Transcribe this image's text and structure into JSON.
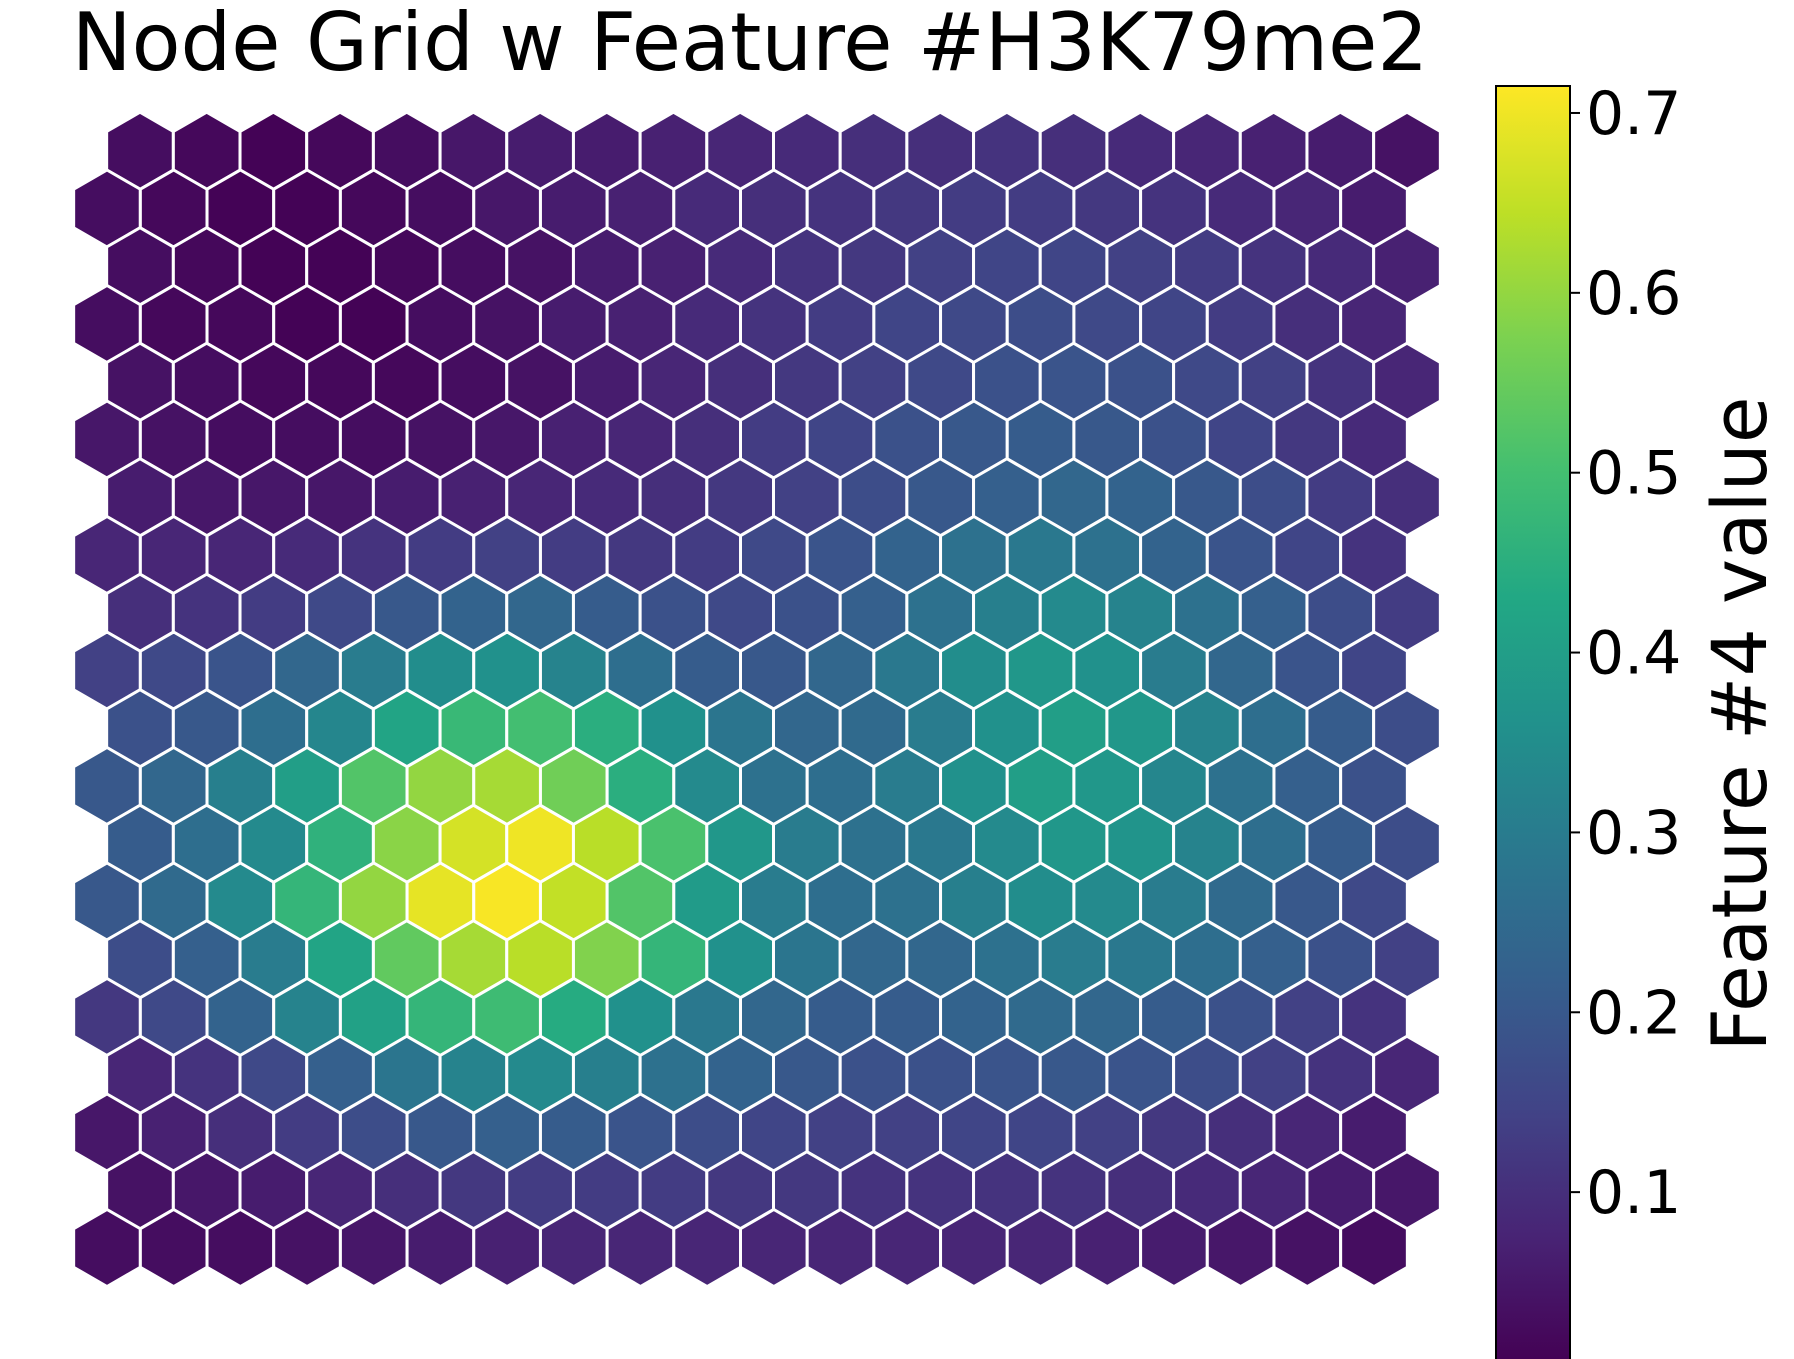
{
  "chart_data": {
    "type": "heatmap",
    "grid": "hexagonal",
    "title": "Node Grid w Feature #H3K79me2",
    "colorbar": {
      "label": "Feature #4 value",
      "colormap": "viridis",
      "vmin": 0.005,
      "vmax": 0.715,
      "ticks": [
        0.1,
        0.2,
        0.3,
        0.4,
        0.5,
        0.6,
        0.7
      ],
      "tick_labels": [
        "0.1",
        "0.2",
        "0.3",
        "0.4",
        "0.5",
        "0.6",
        "0.7"
      ]
    },
    "rows": 20,
    "cols": 20,
    "rows_top_to_bottom": [
      [
        0.03,
        0.02,
        0.01,
        0.02,
        0.03,
        0.05,
        0.06,
        0.06,
        0.07,
        0.08,
        0.09,
        0.1,
        0.1,
        0.11,
        0.1,
        0.09,
        0.08,
        0.07,
        0.06,
        0.04
      ],
      [
        0.03,
        0.02,
        0.01,
        0.01,
        0.02,
        0.03,
        0.05,
        0.06,
        0.07,
        0.09,
        0.1,
        0.11,
        0.12,
        0.13,
        0.13,
        0.12,
        0.11,
        0.09,
        0.08,
        0.06
      ],
      [
        0.03,
        0.02,
        0.01,
        0.01,
        0.02,
        0.03,
        0.04,
        0.06,
        0.07,
        0.09,
        0.11,
        0.12,
        0.14,
        0.15,
        0.15,
        0.14,
        0.13,
        0.11,
        0.09,
        0.07
      ],
      [
        0.03,
        0.02,
        0.02,
        0.01,
        0.01,
        0.03,
        0.04,
        0.06,
        0.07,
        0.09,
        0.11,
        0.13,
        0.15,
        0.16,
        0.17,
        0.16,
        0.15,
        0.13,
        0.1,
        0.08
      ],
      [
        0.04,
        0.03,
        0.02,
        0.02,
        0.02,
        0.03,
        0.04,
        0.06,
        0.08,
        0.1,
        0.12,
        0.14,
        0.16,
        0.18,
        0.19,
        0.18,
        0.16,
        0.14,
        0.11,
        0.08
      ],
      [
        0.05,
        0.04,
        0.03,
        0.03,
        0.03,
        0.04,
        0.05,
        0.07,
        0.08,
        0.1,
        0.13,
        0.15,
        0.18,
        0.2,
        0.21,
        0.2,
        0.18,
        0.15,
        0.12,
        0.09
      ],
      [
        0.06,
        0.05,
        0.05,
        0.05,
        0.06,
        0.07,
        0.08,
        0.09,
        0.1,
        0.12,
        0.14,
        0.17,
        0.2,
        0.22,
        0.24,
        0.23,
        0.2,
        0.17,
        0.13,
        0.1
      ],
      [
        0.08,
        0.08,
        0.08,
        0.09,
        0.11,
        0.13,
        0.14,
        0.13,
        0.12,
        0.13,
        0.16,
        0.19,
        0.23,
        0.27,
        0.29,
        0.27,
        0.23,
        0.19,
        0.15,
        0.11
      ],
      [
        0.1,
        0.11,
        0.13,
        0.16,
        0.2,
        0.23,
        0.24,
        0.21,
        0.18,
        0.16,
        0.18,
        0.22,
        0.27,
        0.31,
        0.34,
        0.32,
        0.27,
        0.22,
        0.17,
        0.13
      ],
      [
        0.14,
        0.16,
        0.19,
        0.24,
        0.3,
        0.35,
        0.36,
        0.32,
        0.26,
        0.21,
        0.2,
        0.24,
        0.29,
        0.35,
        0.38,
        0.36,
        0.3,
        0.24,
        0.19,
        0.15
      ],
      [
        0.18,
        0.2,
        0.26,
        0.33,
        0.42,
        0.48,
        0.5,
        0.45,
        0.36,
        0.28,
        0.24,
        0.25,
        0.3,
        0.36,
        0.4,
        0.38,
        0.32,
        0.26,
        0.21,
        0.17
      ],
      [
        0.2,
        0.24,
        0.31,
        0.4,
        0.52,
        0.6,
        0.62,
        0.56,
        0.45,
        0.34,
        0.27,
        0.26,
        0.3,
        0.36,
        0.4,
        0.38,
        0.33,
        0.27,
        0.22,
        0.18
      ],
      [
        0.21,
        0.26,
        0.34,
        0.46,
        0.59,
        0.67,
        0.7,
        0.64,
        0.51,
        0.38,
        0.3,
        0.27,
        0.29,
        0.34,
        0.38,
        0.37,
        0.32,
        0.26,
        0.21,
        0.17
      ],
      [
        0.2,
        0.25,
        0.34,
        0.47,
        0.6,
        0.69,
        0.71,
        0.65,
        0.52,
        0.39,
        0.3,
        0.26,
        0.27,
        0.31,
        0.35,
        0.34,
        0.3,
        0.25,
        0.2,
        0.16
      ],
      [
        0.17,
        0.22,
        0.3,
        0.42,
        0.54,
        0.62,
        0.64,
        0.58,
        0.47,
        0.36,
        0.28,
        0.24,
        0.24,
        0.27,
        0.3,
        0.29,
        0.26,
        0.22,
        0.18,
        0.14
      ],
      [
        0.12,
        0.16,
        0.23,
        0.32,
        0.41,
        0.47,
        0.49,
        0.44,
        0.36,
        0.29,
        0.24,
        0.21,
        0.21,
        0.23,
        0.25,
        0.24,
        0.21,
        0.18,
        0.14,
        0.11
      ],
      [
        0.08,
        0.11,
        0.16,
        0.22,
        0.28,
        0.32,
        0.34,
        0.31,
        0.27,
        0.23,
        0.2,
        0.18,
        0.18,
        0.19,
        0.2,
        0.19,
        0.17,
        0.14,
        0.11,
        0.08
      ],
      [
        0.05,
        0.07,
        0.1,
        0.13,
        0.17,
        0.2,
        0.22,
        0.21,
        0.19,
        0.17,
        0.15,
        0.14,
        0.14,
        0.15,
        0.15,
        0.14,
        0.12,
        0.1,
        0.08,
        0.06
      ],
      [
        0.04,
        0.05,
        0.06,
        0.08,
        0.1,
        0.12,
        0.13,
        0.13,
        0.13,
        0.12,
        0.12,
        0.11,
        0.11,
        0.11,
        0.11,
        0.1,
        0.09,
        0.08,
        0.06,
        0.05
      ],
      [
        0.03,
        0.03,
        0.03,
        0.04,
        0.05,
        0.06,
        0.07,
        0.08,
        0.08,
        0.08,
        0.08,
        0.08,
        0.08,
        0.08,
        0.08,
        0.07,
        0.06,
        0.05,
        0.04,
        0.03
      ]
    ]
  }
}
